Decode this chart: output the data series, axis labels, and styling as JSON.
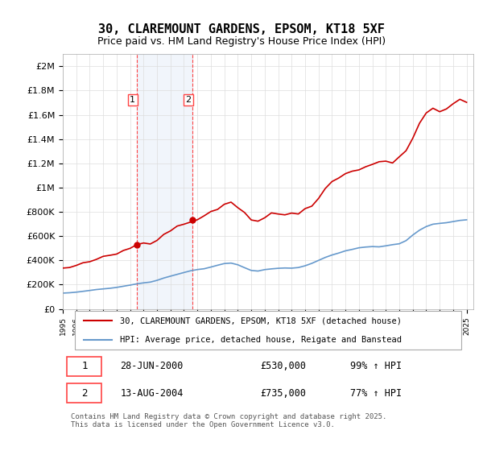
{
  "title": "30, CLAREMOUNT GARDENS, EPSOM, KT18 5XF",
  "subtitle": "Price paid vs. HM Land Registry's House Price Index (HPI)",
  "legend_line1": "30, CLAREMOUNT GARDENS, EPSOM, KT18 5XF (detached house)",
  "legend_line2": "HPI: Average price, detached house, Reigate and Banstead",
  "footer": "Contains HM Land Registry data © Crown copyright and database right 2025.\nThis data is licensed under the Open Government Licence v3.0.",
  "sale1_label": "1",
  "sale1_date": "28-JUN-2000",
  "sale1_price": "£530,000",
  "sale1_hpi": "99% ↑ HPI",
  "sale2_label": "2",
  "sale2_date": "13-AUG-2004",
  "sale2_price": "£735,000",
  "sale2_hpi": "77% ↑ HPI",
  "red_color": "#cc0000",
  "blue_color": "#6699cc",
  "dashed_red": "#ff4444",
  "shaded_blue": "#c8d8f0",
  "ylim_max": 2100000,
  "ylim_min": 0,
  "sale1_x": 2000.49,
  "sale2_x": 2004.62,
  "yticks": [
    0,
    200000,
    400000,
    600000,
    800000,
    1000000,
    1200000,
    1400000,
    1600000,
    1800000,
    2000000
  ],
  "ytick_labels": [
    "£0",
    "£200K",
    "£400K",
    "£600K",
    "£800K",
    "£1M",
    "£1.2M",
    "£1.4M",
    "£1.6M",
    "£1.8M",
    "£2M"
  ]
}
